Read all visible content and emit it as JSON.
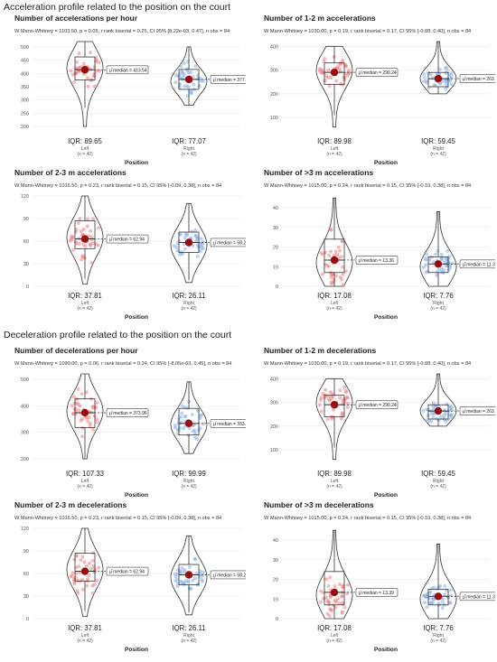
{
  "sections": [
    {
      "title": "Acceleration profile related to the position on the court"
    },
    {
      "title": "Deceleration profile related to the position on the court"
    }
  ],
  "common": {
    "x_title": "Position",
    "groups": [
      "Left",
      "Right"
    ],
    "n_label": "(n = 42)",
    "colors": {
      "left": "#f08080",
      "right": "#8ab0e8",
      "mean": "#9b0d0d",
      "grid": "#ebebeb"
    }
  },
  "chart_data": [
    {
      "type": "violin-box",
      "title": "Number of accelerations per hour",
      "stats_text": "W Mann-Whitney = 1103.50, p = 0.05, r rank biserial = 0.25, CI 95% [8.22e-03, 0.47], n obs = 84",
      "yticks": [
        200,
        250,
        300,
        350,
        400,
        450,
        500
      ],
      "ylim": [
        180,
        520
      ],
      "left": {
        "median_label": "μ̂ median = 413.54",
        "median": 413.54,
        "iqr_label": "IQR: 89.65",
        "q1": 375,
        "q3": 462,
        "whisker": [
          270,
          520
        ],
        "violin": [
          200,
          520
        ],
        "mode": 420
      },
      "right": {
        "median_label": "μ̂ median = 377.54",
        "median": 377.54,
        "iqr_label": "IQR: 77.07",
        "q1": 340,
        "q3": 415,
        "whisker": [
          280,
          500
        ],
        "violin": [
          280,
          500
        ],
        "mode": 370
      }
    },
    {
      "type": "violin-box",
      "title": "Number of 1-2 m accelerations",
      "stats_text": "W Mann-Whitney = 1030.00, p = 0.19, r rank biserial = 0.17, CI 95% [-0.08, 0.40], n obs = 84",
      "yticks": [
        100,
        200,
        300,
        400
      ],
      "ylim": [
        40,
        420
      ],
      "left": {
        "median_label": "μ̂ median = 290.24",
        "median": 290.24,
        "iqr_label": "IQR: 89.98",
        "q1": 240,
        "q3": 330,
        "whisker": [
          110,
          400
        ],
        "violin": [
          60,
          400
        ],
        "mode": 300
      },
      "right": {
        "median_label": "μ̂ median = 263.90",
        "median": 263.9,
        "iqr_label": "IQR: 59.45",
        "q1": 230,
        "q3": 290,
        "whisker": [
          200,
          420
        ],
        "violin": [
          200,
          420
        ],
        "mode": 265
      }
    },
    {
      "type": "violin-box",
      "title": "Number of 2-3 m accelerations",
      "stats_text": "W Mann-Whitney = 1016.50, p = 0.23, r rank biserial = 0.15, CI 95% [-0.09, 0.38], n obs = 84",
      "yticks": [
        0,
        30,
        60,
        90,
        120
      ],
      "ylim": [
        0,
        120
      ],
      "left": {
        "median_label": "μ̂ median = 62.94",
        "median": 62.94,
        "iqr_label": "IQR: 37.81",
        "q1": 50,
        "q3": 87,
        "whisker": [
          10,
          120
        ],
        "violin": [
          3,
          120
        ],
        "mode": 65
      },
      "right": {
        "median_label": "μ̂ median = 58.22",
        "median": 58.22,
        "iqr_label": "IQR: 26.11",
        "q1": 45,
        "q3": 72,
        "whisker": [
          8,
          110
        ],
        "violin": [
          5,
          110
        ],
        "mode": 55
      }
    },
    {
      "type": "violin-box",
      "title": "Number of >3 m accelerations",
      "stats_text": "W Mann-Whitney = 1015.00, p = 0.24, r rank biserial = 0.15, CI 95% [-0.10, 0.38], n obs = 84",
      "yticks": [
        0,
        10,
        20,
        30,
        40
      ],
      "ylim": [
        0,
        46
      ],
      "left": {
        "median_label": "μ̂ median = 13.36",
        "median": 13.36,
        "iqr_label": "IQR: 17.08",
        "q1": 7,
        "q3": 24,
        "whisker": [
          0,
          45
        ],
        "violin": [
          0,
          45
        ],
        "mode": 12
      },
      "right": {
        "median_label": "μ̂ median = 11.37",
        "median": 11.37,
        "iqr_label": "IQR: 7.76",
        "q1": 7,
        "q3": 15,
        "whisker": [
          0,
          38
        ],
        "violin": [
          0,
          38
        ],
        "mode": 10
      }
    },
    {
      "type": "violin-box",
      "title": "Number of decelerations per hour",
      "stats_text": "W Mann-Whitney = 1090.00, p = 0.06, r rank biserial = 0.24, CI 95% [-8.05e-03, 0.45], n obs = 84",
      "yticks": [
        200,
        300,
        400,
        500
      ],
      "ylim": [
        180,
        520
      ],
      "left": {
        "median_label": "μ̂ median = 373.96",
        "median": 373.96,
        "iqr_label": "IQR: 107.33",
        "q1": 318,
        "q3": 426,
        "whisker": [
          200,
          520
        ],
        "violin": [
          200,
          520
        ],
        "mode": 380
      },
      "right": {
        "median_label": "μ̂ median = 333.59",
        "median": 333.59,
        "iqr_label": "IQR: 99.99",
        "q1": 290,
        "q3": 390,
        "whisker": [
          220,
          490
        ],
        "violin": [
          220,
          490
        ],
        "mode": 330
      }
    },
    {
      "type": "violin-box",
      "title": "Number of 1-2 m decelerations",
      "stats_text": "W Mann-Whitney = 1030.00, p = 0.19, r rank biserial = 0.17, CI 95% [-0.08, 0.40], n obs = 84",
      "yticks": [
        100,
        200,
        300,
        400
      ],
      "ylim": [
        40,
        420
      ],
      "left": {
        "median_label": "μ̂ median = 290.24",
        "median": 290.24,
        "iqr_label": "IQR: 89.98",
        "q1": 240,
        "q3": 330,
        "whisker": [
          110,
          400
        ],
        "violin": [
          60,
          400
        ],
        "mode": 300
      },
      "right": {
        "median_label": "μ̂ median = 263.90",
        "median": 263.9,
        "iqr_label": "IQR: 59.45",
        "q1": 230,
        "q3": 290,
        "whisker": [
          200,
          420
        ],
        "violin": [
          200,
          420
        ],
        "mode": 265
      }
    },
    {
      "type": "violin-box",
      "title": "Number of 2-3 m decelerations",
      "stats_text": "W Mann-Whitney = 1016.50, p = 0.23, r rank biserial = 0.15, CI 95% [-0.09, 0.38], n obs = 84",
      "yticks": [
        0,
        30,
        60,
        90,
        120
      ],
      "ylim": [
        0,
        120
      ],
      "left": {
        "median_label": "μ̂ median = 62.94",
        "median": 62.94,
        "iqr_label": "IQR: 37.81",
        "q1": 50,
        "q3": 87,
        "whisker": [
          10,
          120
        ],
        "violin": [
          3,
          120
        ],
        "mode": 65
      },
      "right": {
        "median_label": "μ̂ median = 58.22",
        "median": 58.22,
        "iqr_label": "IQR: 26.11",
        "q1": 45,
        "q3": 72,
        "whisker": [
          8,
          110
        ],
        "violin": [
          5,
          110
        ],
        "mode": 55
      }
    },
    {
      "type": "violin-box",
      "title": "Number of >3 m decelerations",
      "stats_text": "W Mann-Whitney = 1015.00, p = 0.24, r rank biserial = 0.15, CI 95% [-0.10, 0.38], n obs = 84",
      "yticks": [
        0,
        10,
        20,
        30,
        40
      ],
      "ylim": [
        0,
        46
      ],
      "left": {
        "median_label": "μ̂ median = 13.39",
        "median": 13.39,
        "iqr_label": "IQR: 17.08",
        "q1": 7,
        "q3": 24,
        "whisker": [
          0,
          45
        ],
        "violin": [
          0,
          45
        ],
        "mode": 12
      },
      "right": {
        "median_label": "μ̂ median = 11.37",
        "median": 11.37,
        "iqr_label": "IQR: 7.76",
        "q1": 7,
        "q3": 15,
        "whisker": [
          0,
          38
        ],
        "violin": [
          0,
          38
        ],
        "mode": 10
      }
    }
  ]
}
